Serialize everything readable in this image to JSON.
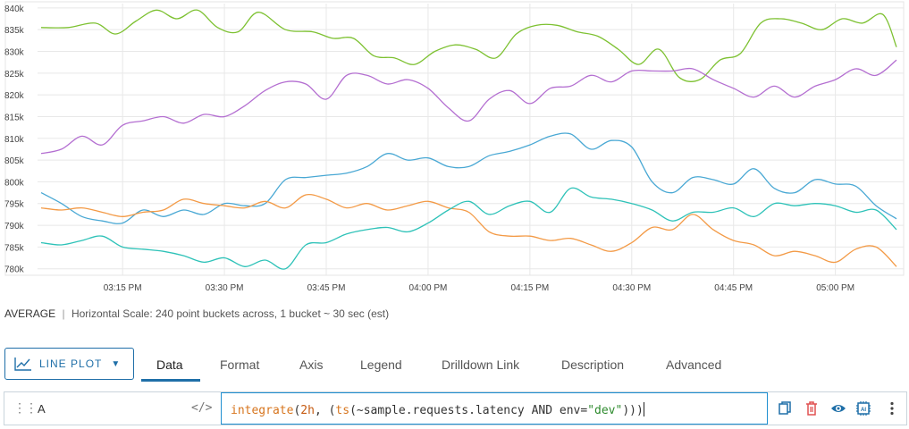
{
  "chart_data": {
    "type": "line",
    "x_ticks": [
      "03:15 PM",
      "03:30 PM",
      "03:45 PM",
      "04:00 PM",
      "04:15 PM",
      "04:30 PM",
      "04:45 PM",
      "05:00 PM"
    ],
    "y_ticks": [
      "840k",
      "835k",
      "830k",
      "825k",
      "820k",
      "815k",
      "810k",
      "805k",
      "800k",
      "795k",
      "790k",
      "785k",
      "780k"
    ],
    "ylim": [
      778500,
      841000
    ],
    "xlim_minutes": [
      -12,
      114
    ],
    "grid": true,
    "series": [
      {
        "color": "#7dc131",
        "x": [
          -12,
          -8,
          -4,
          -1,
          2,
          5,
          8,
          11,
          14,
          17,
          20,
          24,
          28,
          31,
          34,
          37,
          40,
          43,
          46,
          49,
          52,
          55,
          58,
          61,
          64,
          67,
          70,
          73,
          76,
          79,
          82,
          85,
          88,
          91,
          94,
          97,
          100,
          103,
          106,
          109,
          112,
          114
        ],
        "y": [
          835500,
          835500,
          836500,
          834000,
          837000,
          839500,
          837500,
          839500,
          835500,
          834500,
          839000,
          835000,
          834500,
          833000,
          833000,
          829000,
          828500,
          827000,
          830000,
          831500,
          830500,
          828500,
          834000,
          836000,
          836000,
          834500,
          833500,
          830500,
          827000,
          830500,
          824000,
          823500,
          828000,
          829500,
          836500,
          837500,
          836500,
          835000,
          837500,
          836500,
          838500,
          831000
        ]
      },
      {
        "color": "#b46fd1",
        "x": [
          -12,
          -9,
          -6,
          -3,
          0,
          3,
          6,
          9,
          12,
          15,
          18,
          21,
          24,
          27,
          30,
          33,
          36,
          39,
          42,
          45,
          48,
          51,
          54,
          57,
          60,
          63,
          66,
          69,
          72,
          75,
          78,
          81,
          84,
          87,
          90,
          93,
          96,
          99,
          102,
          105,
          108,
          111,
          114
        ],
        "y": [
          806500,
          807500,
          810500,
          808500,
          813000,
          814000,
          815000,
          813500,
          815500,
          815000,
          817500,
          821000,
          823000,
          822500,
          819000,
          824500,
          824500,
          822500,
          823500,
          821500,
          817000,
          814000,
          819000,
          821000,
          818000,
          821500,
          822000,
          824500,
          823000,
          825500,
          825500,
          825500,
          826000,
          823500,
          821500,
          819500,
          822000,
          819500,
          822000,
          823500,
          826000,
          824500,
          828000
        ]
      },
      {
        "color": "#49a8d4",
        "x": [
          -12,
          -9,
          -6,
          -3,
          0,
          3,
          6,
          9,
          12,
          15,
          18,
          21,
          24,
          27,
          30,
          33,
          36,
          39,
          42,
          45,
          48,
          51,
          54,
          57,
          60,
          63,
          66,
          69,
          72,
          75,
          78,
          81,
          84,
          87,
          90,
          93,
          96,
          99,
          102,
          105,
          108,
          111,
          114
        ],
        "y": [
          797500,
          795000,
          792000,
          791000,
          790500,
          793500,
          792000,
          793500,
          792500,
          795000,
          794500,
          795000,
          800500,
          801000,
          801500,
          802000,
          803500,
          806500,
          805000,
          805500,
          803500,
          803500,
          806000,
          807000,
          808500,
          810500,
          811000,
          807500,
          809500,
          808000,
          800000,
          797500,
          801000,
          800500,
          799500,
          803000,
          798500,
          797500,
          800500,
          799500,
          799000,
          794500,
          791500
        ]
      },
      {
        "color": "#f39a46",
        "x": [
          -12,
          -9,
          -6,
          -3,
          0,
          3,
          6,
          9,
          12,
          15,
          18,
          21,
          24,
          27,
          30,
          33,
          36,
          39,
          42,
          45,
          48,
          51,
          54,
          57,
          60,
          63,
          66,
          69,
          72,
          75,
          78,
          81,
          84,
          87,
          90,
          93,
          96,
          99,
          102,
          105,
          108,
          111,
          114
        ],
        "y": [
          794000,
          793500,
          794000,
          793000,
          792000,
          793000,
          793500,
          796000,
          795000,
          794500,
          794000,
          795500,
          794000,
          797000,
          796000,
          794000,
          795000,
          793500,
          794500,
          795500,
          794000,
          793000,
          788500,
          787500,
          787500,
          786500,
          787000,
          785500,
          784000,
          786000,
          789500,
          789000,
          792500,
          789000,
          786500,
          785500,
          783000,
          784000,
          783000,
          781500,
          784500,
          785000,
          780500
        ]
      },
      {
        "color": "#2ec2b8",
        "x": [
          -12,
          -9,
          -6,
          -3,
          0,
          3,
          6,
          9,
          12,
          15,
          18,
          21,
          24,
          27,
          30,
          33,
          36,
          39,
          42,
          45,
          48,
          51,
          54,
          57,
          60,
          63,
          66,
          69,
          72,
          75,
          78,
          81,
          84,
          87,
          90,
          93,
          96,
          99,
          102,
          105,
          108,
          111,
          114
        ],
        "y": [
          786000,
          785500,
          786500,
          787500,
          785000,
          784500,
          784000,
          783000,
          781500,
          782500,
          780500,
          782000,
          780000,
          785500,
          786000,
          788000,
          789000,
          789500,
          788500,
          790500,
          793500,
          795500,
          792500,
          794500,
          795500,
          793000,
          798500,
          796500,
          796000,
          795000,
          793500,
          791000,
          793000,
          793000,
          794000,
          792000,
          795000,
          794500,
          795000,
          794500,
          793000,
          793500,
          789000
        ]
      }
    ]
  },
  "summary": {
    "aggregation": "AVERAGE",
    "separator": "|",
    "scale_text": "Horizontal Scale: 240 point buckets across, 1 bucket ~ 30 sec (est)"
  },
  "toolbar": {
    "plot_type_label": "LINE PLOT",
    "plot_type_icon": "line-chart-icon",
    "tabs": [
      {
        "label": "Data"
      },
      {
        "label": "Format"
      },
      {
        "label": "Axis"
      },
      {
        "label": "Legend"
      },
      {
        "label": "Drilldown Link"
      },
      {
        "label": "Description"
      },
      {
        "label": "Advanced"
      }
    ],
    "accent_color": "#1f6fa8"
  },
  "query": {
    "name": "A",
    "code_toggle": "</>",
    "expr_func": "integrate",
    "expr_paren_open": "(",
    "expr_window": "2h",
    "expr_middle": ", (",
    "expr_ts_func": "ts",
    "expr_ts_args": "(~sample.requests.latency AND env=",
    "expr_string": "\"dev\"",
    "expr_close": ")))",
    "actions": [
      "copy-icon",
      "delete-icon",
      "eye-icon",
      "ai-icon",
      "more-vertical-icon"
    ]
  }
}
